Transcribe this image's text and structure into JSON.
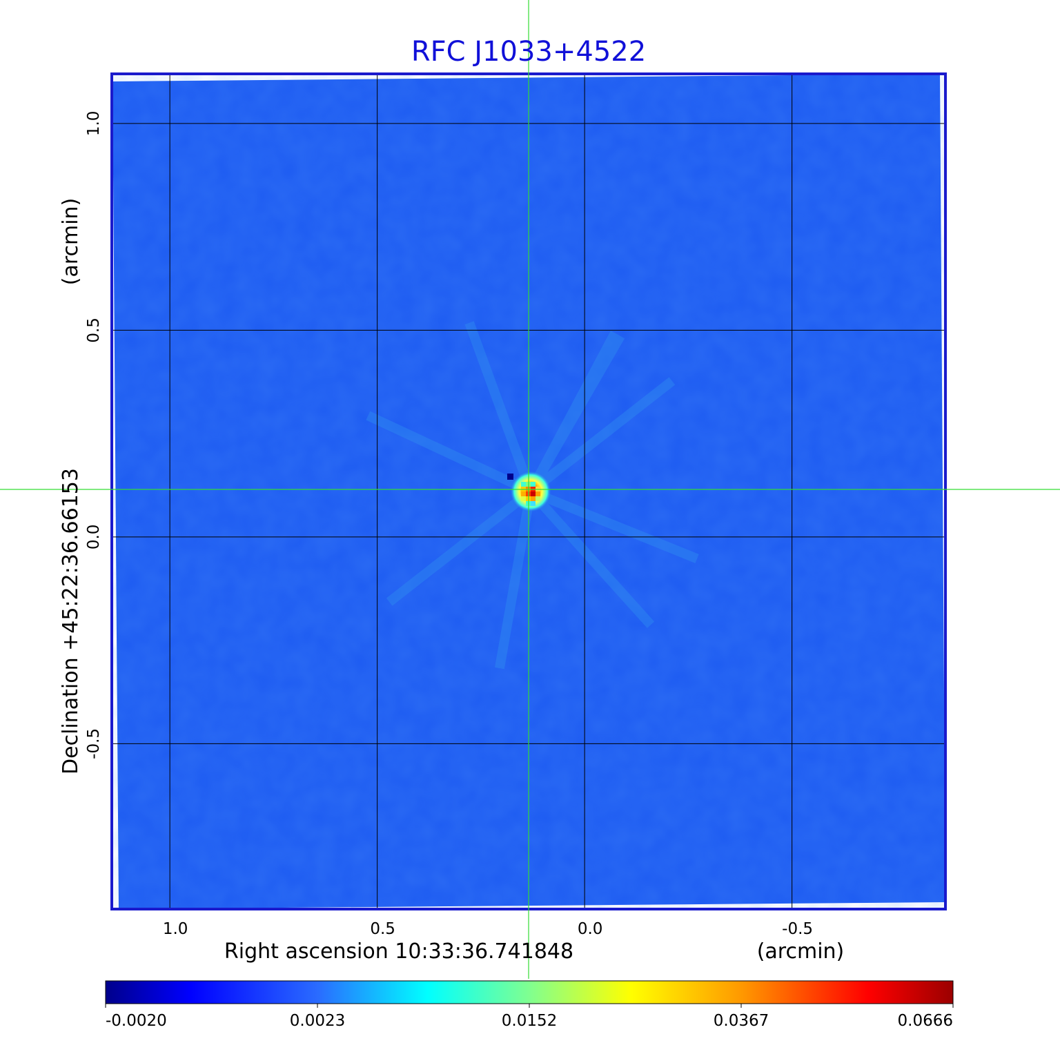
{
  "chart_data": {
    "type": "heatmap",
    "title": "RFC J1033+4522",
    "xlabel": "Right ascension  10:33:36.741848",
    "xunit": "(arcmin)",
    "ylabel": "Declination  +45:22:36.66153",
    "yunit": "(arcmin)",
    "x_ticks": [
      "1.0",
      "0.5",
      "0.0",
      "-0.5"
    ],
    "y_ticks": [
      "1.0",
      "0.5",
      "0.0",
      "-0.5"
    ],
    "xlim": [
      1.14,
      -0.87
    ],
    "ylim": [
      -0.9,
      1.12
    ],
    "grid": true,
    "crosshair": {
      "x": 0.135,
      "y": 0.115,
      "color": "#33dd33"
    },
    "source": {
      "x": 0.13,
      "y": 0.11,
      "peak": 0.0666
    },
    "colorbar": {
      "ticks": [
        "-0.0020",
        "0.0023",
        "0.0152",
        "0.0367",
        "0.0666"
      ],
      "colormap": "jet",
      "range": [
        -0.002,
        0.0666
      ]
    },
    "colors": {
      "background_field": "#1e5cf2",
      "frame": "#1a1acc",
      "title": "#1010d8"
    }
  }
}
